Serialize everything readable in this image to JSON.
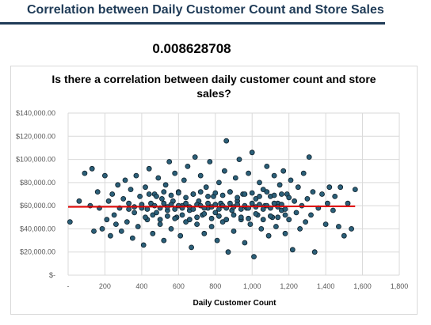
{
  "header": {
    "title": "Correlation between Daily Customer Count and Store Sales",
    "correlation_value": "0.008628708"
  },
  "colors": {
    "title": "#1f3b57",
    "marker_fill": "#2b5f78",
    "marker_stroke": "#0e1f2a",
    "trendline": "#e00000",
    "grid": "#d9d9d9"
  },
  "chart_data": {
    "type": "scatter",
    "title": "Is there a correlation between daily customer count and store sales?",
    "xlabel": "Daily Customer Count",
    "ylabel": "",
    "xlim": [
      0,
      1800
    ],
    "ylim": [
      0,
      140000
    ],
    "x_ticks": [
      {
        "value": 0,
        "label": "-"
      },
      {
        "value": 200,
        "label": "200"
      },
      {
        "value": 400,
        "label": "400"
      },
      {
        "value": 600,
        "label": "600"
      },
      {
        "value": 800,
        "label": "800"
      },
      {
        "value": 1000,
        "label": "1,000"
      },
      {
        "value": 1200,
        "label": "1,200"
      },
      {
        "value": 1400,
        "label": "1,400"
      },
      {
        "value": 1600,
        "label": "1,600"
      },
      {
        "value": 1800,
        "label": "1,800"
      }
    ],
    "y_ticks": [
      {
        "value": 0,
        "label": "$-"
      },
      {
        "value": 20000,
        "label": "$20,000.00"
      },
      {
        "value": 40000,
        "label": "$40,000.00"
      },
      {
        "value": 60000,
        "label": "$60,000.00"
      },
      {
        "value": 80000,
        "label": "$80,000.00"
      },
      {
        "value": 100000,
        "label": "$100,000.00"
      },
      {
        "value": 120000,
        "label": "$120,000.00"
      },
      {
        "value": 140000,
        "label": "$140,000.00"
      }
    ],
    "grid": "vertical-and-horizontal",
    "legend": "none",
    "trendline": {
      "x": [
        0,
        1560
      ],
      "y": [
        59000,
        59500
      ]
    },
    "points": [
      [
        10,
        46000
      ],
      [
        60,
        64000
      ],
      [
        90,
        88000
      ],
      [
        120,
        60000
      ],
      [
        130,
        92000
      ],
      [
        140,
        38000
      ],
      [
        160,
        72000
      ],
      [
        170,
        58000
      ],
      [
        185,
        40000
      ],
      [
        200,
        86000
      ],
      [
        210,
        48000
      ],
      [
        220,
        64000
      ],
      [
        230,
        34000
      ],
      [
        240,
        70000
      ],
      [
        250,
        52000
      ],
      [
        260,
        44000
      ],
      [
        270,
        78000
      ],
      [
        280,
        58000
      ],
      [
        290,
        38000
      ],
      [
        300,
        66000
      ],
      [
        310,
        82000
      ],
      [
        320,
        46000
      ],
      [
        330,
        62000
      ],
      [
        340,
        74000
      ],
      [
        350,
        32000
      ],
      [
        360,
        54000
      ],
      [
        370,
        86000
      ],
      [
        380,
        42000
      ],
      [
        390,
        68000
      ],
      [
        400,
        58000
      ],
      [
        410,
        26000
      ],
      [
        420,
        76000
      ],
      [
        430,
        48000
      ],
      [
        440,
        92000
      ],
      [
        450,
        62000
      ],
      [
        460,
        36000
      ],
      [
        470,
        70000
      ],
      [
        480,
        54000
      ],
      [
        490,
        84000
      ],
      [
        500,
        44000
      ],
      [
        510,
        66000
      ],
      [
        520,
        30000
      ],
      [
        530,
        78000
      ],
      [
        540,
        56000
      ],
      [
        550,
        98000
      ],
      [
        560,
        40000
      ],
      [
        570,
        64000
      ],
      [
        580,
        88000
      ],
      [
        590,
        50000
      ],
      [
        600,
        72000
      ],
      [
        610,
        34000
      ],
      [
        620,
        60000
      ],
      [
        630,
        82000
      ],
      [
        640,
        46000
      ],
      [
        650,
        94000
      ],
      [
        660,
        56000
      ],
      [
        670,
        24000
      ],
      [
        680,
        70000
      ],
      [
        690,
        102000
      ],
      [
        700,
        44000
      ],
      [
        710,
        64000
      ],
      [
        720,
        86000
      ],
      [
        730,
        52000
      ],
      [
        740,
        36000
      ],
      [
        750,
        76000
      ],
      [
        760,
        58000
      ],
      [
        770,
        98000
      ],
      [
        780,
        42000
      ],
      [
        790,
        68000
      ],
      [
        800,
        54000
      ],
      [
        810,
        30000
      ],
      [
        820,
        80000
      ],
      [
        830,
        62000
      ],
      [
        840,
        46000
      ],
      [
        850,
        90000
      ],
      [
        860,
        116000
      ],
      [
        870,
        20000
      ],
      [
        880,
        72000
      ],
      [
        890,
        56000
      ],
      [
        900,
        38000
      ],
      [
        910,
        84000
      ],
      [
        920,
        64000
      ],
      [
        930,
        100000
      ],
      [
        940,
        48000
      ],
      [
        950,
        70000
      ],
      [
        960,
        28000
      ],
      [
        970,
        58000
      ],
      [
        980,
        88000
      ],
      [
        990,
        44000
      ],
      [
        1000,
        106000
      ],
      [
        1010,
        16000
      ],
      [
        1020,
        66000
      ],
      [
        1030,
        52000
      ],
      [
        1040,
        80000
      ],
      [
        1050,
        40000
      ],
      [
        1060,
        74000
      ],
      [
        1070,
        60000
      ],
      [
        1080,
        94000
      ],
      [
        1090,
        34000
      ],
      [
        1100,
        68000
      ],
      [
        1110,
        50000
      ],
      [
        1120,
        86000
      ],
      [
        1130,
        42000
      ],
      [
        1140,
        62000
      ],
      [
        1150,
        78000
      ],
      [
        1160,
        56000
      ],
      [
        1170,
        90000
      ],
      [
        1180,
        36000
      ],
      [
        1190,
        70000
      ],
      [
        1200,
        48000
      ],
      [
        1210,
        82000
      ],
      [
        1220,
        22000
      ],
      [
        1230,
        64000
      ],
      [
        1240,
        54000
      ],
      [
        1250,
        76000
      ],
      [
        1260,
        40000
      ],
      [
        1270,
        60000
      ],
      [
        1280,
        88000
      ],
      [
        1290,
        46000
      ],
      [
        1300,
        66000
      ],
      [
        1310,
        102000
      ],
      [
        1320,
        52000
      ],
      [
        1330,
        72000
      ],
      [
        1340,
        20000
      ],
      [
        1360,
        58000
      ],
      [
        1380,
        70000
      ],
      [
        1400,
        44000
      ],
      [
        1410,
        62000
      ],
      [
        1420,
        76000
      ],
      [
        1440,
        56000
      ],
      [
        1450,
        68000
      ],
      [
        1470,
        42000
      ],
      [
        1480,
        76000
      ],
      [
        1500,
        34000
      ],
      [
        1520,
        62000
      ],
      [
        1540,
        40000
      ],
      [
        1560,
        74000
      ],
      [
        330,
        57000
      ],
      [
        360,
        59000
      ],
      [
        400,
        61000
      ],
      [
        430,
        57000
      ],
      [
        470,
        60000
      ],
      [
        500,
        58000
      ],
      [
        520,
        62000
      ],
      [
        540,
        59000
      ],
      [
        560,
        61000
      ],
      [
        580,
        57000
      ],
      [
        600,
        60000
      ],
      [
        620,
        58000
      ],
      [
        640,
        62000
      ],
      [
        660,
        59000
      ],
      [
        680,
        57000
      ],
      [
        700,
        61000
      ],
      [
        720,
        60000
      ],
      [
        740,
        58000
      ],
      [
        760,
        62000
      ],
      [
        780,
        59000
      ],
      [
        800,
        61000
      ],
      [
        820,
        57000
      ],
      [
        840,
        60000
      ],
      [
        860,
        58000
      ],
      [
        880,
        62000
      ],
      [
        900,
        59000
      ],
      [
        920,
        61000
      ],
      [
        940,
        57000
      ],
      [
        960,
        60000
      ],
      [
        980,
        58000
      ],
      [
        1000,
        62000
      ],
      [
        1020,
        59000
      ],
      [
        1040,
        61000
      ],
      [
        1060,
        57000
      ],
      [
        1080,
        60000
      ],
      [
        1100,
        58000
      ],
      [
        1120,
        62000
      ],
      [
        1140,
        59000
      ],
      [
        1160,
        61000
      ],
      [
        1180,
        57000
      ],
      [
        420,
        50000
      ],
      [
        460,
        52000
      ],
      [
        500,
        48000
      ],
      [
        540,
        51000
      ],
      [
        580,
        49000
      ],
      [
        620,
        52000
      ],
      [
        660,
        48000
      ],
      [
        700,
        50000
      ],
      [
        740,
        53000
      ],
      [
        780,
        49000
      ],
      [
        820,
        51000
      ],
      [
        860,
        48000
      ],
      [
        900,
        52000
      ],
      [
        940,
        50000
      ],
      [
        980,
        49000
      ],
      [
        1020,
        53000
      ],
      [
        1060,
        48000
      ],
      [
        1100,
        51000
      ],
      [
        1140,
        50000
      ],
      [
        1180,
        52000
      ],
      [
        440,
        70000
      ],
      [
        480,
        68000
      ],
      [
        520,
        72000
      ],
      [
        560,
        69000
      ],
      [
        600,
        71000
      ],
      [
        640,
        67000
      ],
      [
        680,
        70000
      ],
      [
        720,
        72000
      ],
      [
        760,
        68000
      ],
      [
        800,
        71000
      ],
      [
        840,
        69000
      ],
      [
        880,
        72000
      ],
      [
        920,
        67000
      ],
      [
        960,
        70000
      ],
      [
        1000,
        71000
      ],
      [
        1040,
        68000
      ],
      [
        1080,
        72000
      ],
      [
        1120,
        69000
      ],
      [
        1160,
        70000
      ],
      [
        1200,
        67000
      ]
    ]
  }
}
